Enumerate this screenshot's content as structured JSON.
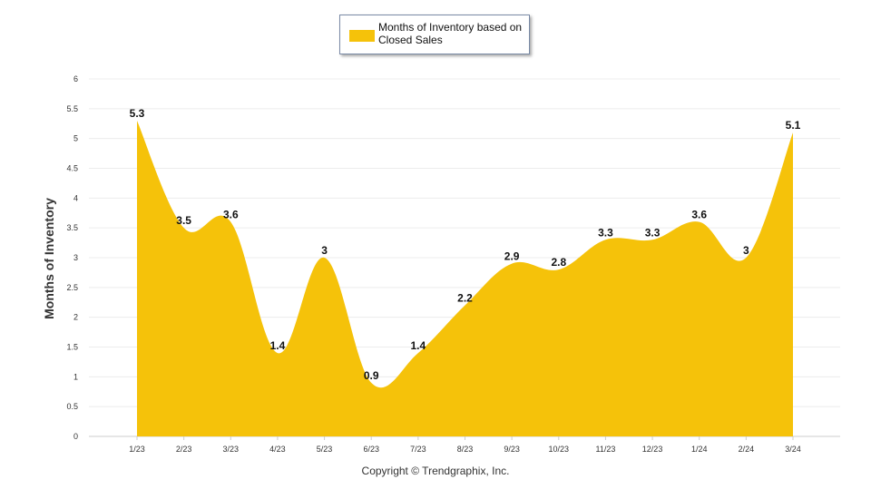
{
  "chart_data": {
    "type": "area",
    "categories": [
      "1/23",
      "2/23",
      "3/23",
      "4/23",
      "5/23",
      "6/23",
      "7/23",
      "8/23",
      "9/23",
      "10/23",
      "11/23",
      "12/23",
      "1/24",
      "2/24",
      "3/24"
    ],
    "series": [
      {
        "name": "Months of Inventory based on Closed Sales",
        "values": [
          5.3,
          3.5,
          3.6,
          1.4,
          3,
          0.9,
          1.4,
          2.2,
          2.9,
          2.8,
          3.3,
          3.3,
          3.6,
          3,
          5.1
        ]
      }
    ],
    "ylabel": "Months of Inventory",
    "xlabel": "",
    "ylim": [
      0,
      6
    ],
    "yticks": [
      "0",
      "0.5",
      "1",
      "1.5",
      "2",
      "2.5",
      "3",
      "3.5",
      "4",
      "4.5",
      "5",
      "5.5",
      "6"
    ],
    "grid": true,
    "legend_position": "top-center",
    "color": "#f5c20a"
  },
  "legend": {
    "label": "Months of Inventory based on Closed Sales"
  },
  "footer": {
    "copyright": "Copyright © Trendgraphix, Inc."
  }
}
